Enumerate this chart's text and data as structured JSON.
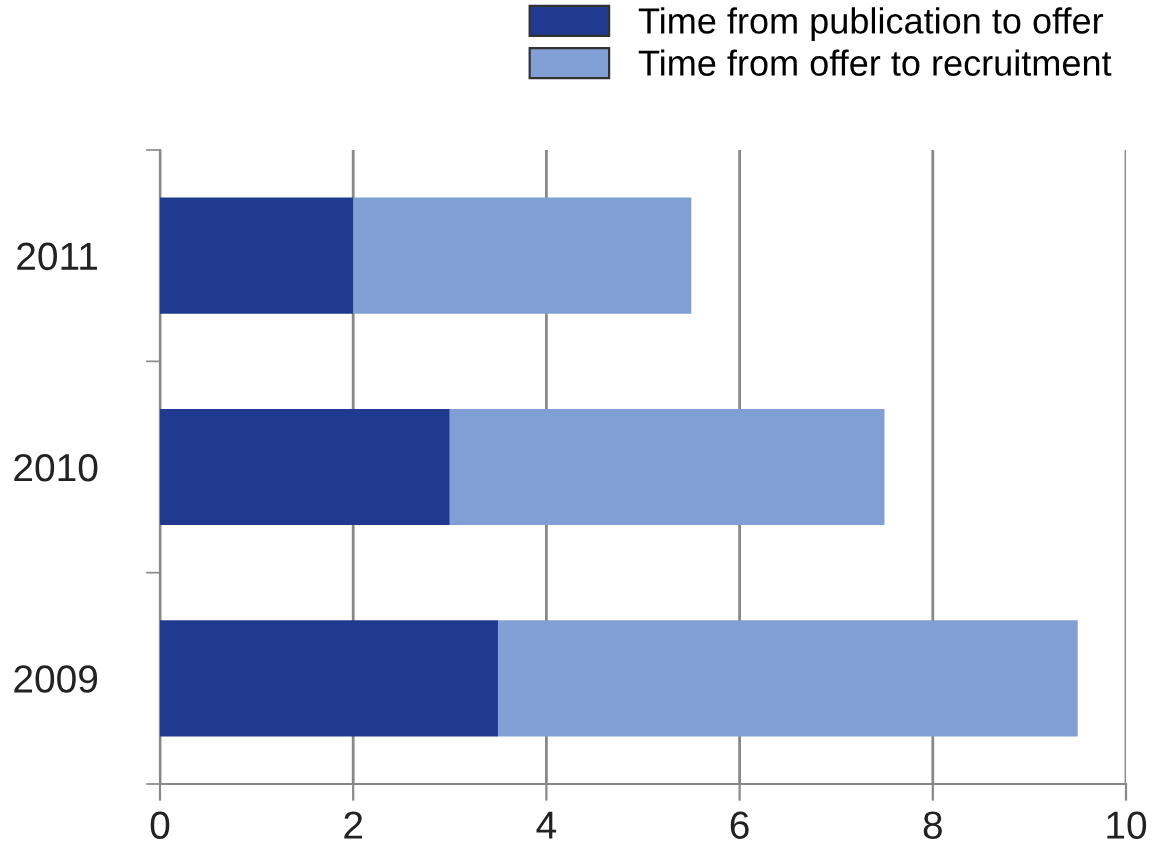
{
  "chart_data": {
    "type": "bar",
    "orientation": "horizontal",
    "stacked": true,
    "categories": [
      "2011",
      "2010",
      "2009"
    ],
    "series": [
      {
        "name": "Time from publication to offer",
        "color": "#1f3a8f",
        "values": [
          2,
          3,
          3.5
        ]
      },
      {
        "name": "Time from offer to recruitment",
        "color": "#7f9fd5",
        "values": [
          3.5,
          4.5,
          6
        ]
      }
    ],
    "xlim": [
      0,
      10
    ],
    "xticks": [
      0,
      2,
      4,
      6,
      8,
      10
    ],
    "grid": "x",
    "legend": "top right"
  }
}
